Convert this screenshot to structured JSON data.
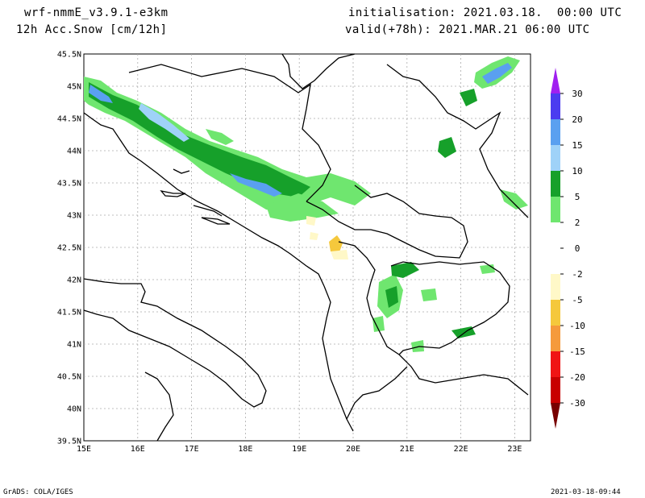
{
  "header": {
    "model": "wrf-nmmE_v3.9.1-e3km",
    "field": "12h Acc.Snow [cm/12h]",
    "initialisation": "initialisation: 2021.03.18.  00:00 UTC",
    "valid": "valid(+78h): 2021.MAR.21 06:00 UTC"
  },
  "map": {
    "lat_labels": [
      "45.5N",
      "45N",
      "44.5N",
      "44N",
      "43.5N",
      "43N",
      "42.5N",
      "42N",
      "41.5N",
      "41N",
      "40.5N",
      "40N",
      "39.5N"
    ],
    "lon_labels": [
      "15E",
      "16E",
      "17E",
      "18E",
      "19E",
      "20E",
      "21E",
      "22E",
      "23E"
    ],
    "grid": true
  },
  "colorbar": {
    "labels": [
      "30",
      "20",
      "15",
      "10",
      "5",
      "2",
      "0",
      "-2",
      "-5",
      "-10",
      "-15",
      "-20",
      "-30"
    ],
    "colors": [
      "#4b3cf0",
      "#5aa0f0",
      "#9fd2f8",
      "#16a02a",
      "#6fe66f",
      "#ffffff",
      "#ffffff",
      "#fff8c8",
      "#f5c83c",
      "#f59a3c",
      "#f01414",
      "#c80000",
      "#8c0000"
    ],
    "top_arrow_color": "#a020f0",
    "bottom_arrow_color": "#780000"
  },
  "footer": {
    "left": "GrADS: COLA/IGES",
    "right": "2021-03-18-09:44"
  }
}
